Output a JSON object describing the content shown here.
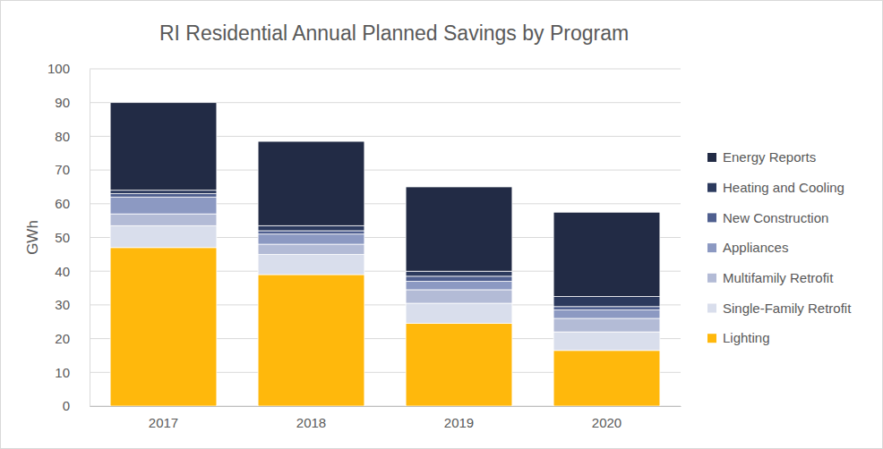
{
  "chart_data": {
    "type": "bar",
    "stacked": true,
    "title": "RI Residential Annual Planned Savings by Program",
    "y_label": "GWh",
    "categories": [
      "2017",
      "2018",
      "2019",
      "2020"
    ],
    "series": [
      {
        "name": "Lighting",
        "color": "#ffb80c",
        "values": [
          47,
          39,
          24.5,
          16.5
        ]
      },
      {
        "name": "Single-Family Retrofit",
        "color": "#d9deec",
        "values": [
          6.5,
          6,
          6,
          5.5
        ]
      },
      {
        "name": "Multifamily Retrofit",
        "color": "#b3bbd6",
        "values": [
          3.5,
          3,
          4,
          4
        ]
      },
      {
        "name": "Appliances",
        "color": "#8c99c2",
        "values": [
          5,
          3,
          2.5,
          2.5
        ]
      },
      {
        "name": "New Construction",
        "color": "#4f5f8f",
        "values": [
          1,
          1,
          1.5,
          1
        ]
      },
      {
        "name": "Heating and Cooling",
        "color": "#2c3a5e",
        "values": [
          1,
          1.5,
          1.5,
          3
        ]
      },
      {
        "name": "Energy Reports",
        "color": "#222b45",
        "values": [
          26,
          25,
          25,
          25
        ]
      }
    ],
    "ylim": [
      0,
      100
    ],
    "yticks": [
      0,
      10,
      20,
      30,
      40,
      50,
      60,
      70,
      80,
      90,
      100
    ],
    "grid": true,
    "legend": "right"
  }
}
